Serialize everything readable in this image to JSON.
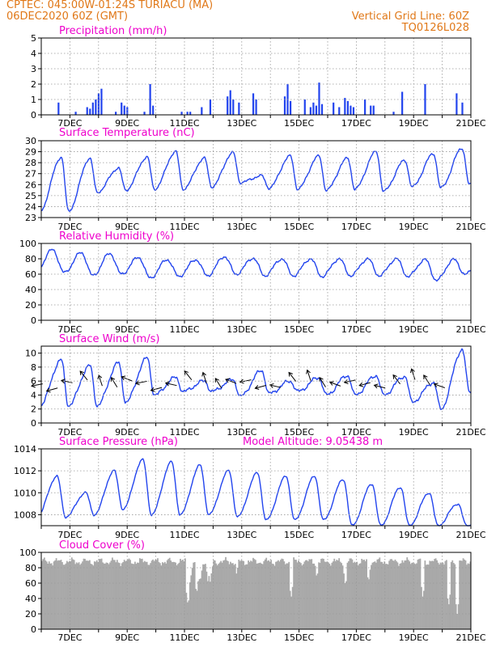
{
  "header": {
    "line1_left": "CPTEC:   045:00W-01:24S   TURIACU (MA)",
    "line2_left": "06DEC2020 60Z (GMT)",
    "line1_right": "Vertical Grid Line: 60Z",
    "line2_right": "TQ0126L028"
  },
  "colors": {
    "header": "#e07818",
    "title": "#ee00cc",
    "series": "#2244ee",
    "cloud": "#a9a9a9"
  },
  "x_axis": {
    "days": [
      "7DEC",
      "9DEC",
      "11DEC",
      "13DEC",
      "15DEC",
      "17DEC",
      "19DEC",
      "21DEC"
    ],
    "start_day": 6,
    "end_day": 21
  },
  "chart_data": [
    {
      "id": "precip",
      "type": "bar",
      "title": "Precipitation (mm/h)",
      "ylim": [
        0,
        5
      ],
      "yticks": [
        0,
        1,
        2,
        3,
        4,
        5
      ],
      "x_start": "06DEC2020",
      "x_end": "21DEC2020",
      "bars": [
        [
          6.6,
          0.8
        ],
        [
          7.2,
          0.2
        ],
        [
          7.6,
          0.5
        ],
        [
          7.7,
          0.4
        ],
        [
          7.8,
          0.8
        ],
        [
          7.9,
          1.0
        ],
        [
          8.0,
          1.4
        ],
        [
          8.1,
          1.7
        ],
        [
          8.6,
          0.2
        ],
        [
          8.8,
          0.8
        ],
        [
          8.9,
          0.6
        ],
        [
          9.0,
          0.5
        ],
        [
          9.6,
          0.2
        ],
        [
          9.8,
          2.0
        ],
        [
          9.9,
          0.6
        ],
        [
          10.9,
          0.2
        ],
        [
          11.1,
          0.2
        ],
        [
          11.2,
          0.2
        ],
        [
          11.6,
          0.5
        ],
        [
          11.9,
          1.0
        ],
        [
          12.5,
          1.2
        ],
        [
          12.6,
          1.6
        ],
        [
          12.7,
          1.0
        ],
        [
          12.9,
          0.8
        ],
        [
          13.4,
          1.4
        ],
        [
          13.5,
          1.0
        ],
        [
          14.5,
          1.2
        ],
        [
          14.6,
          2.0
        ],
        [
          14.7,
          0.9
        ],
        [
          15.2,
          1.0
        ],
        [
          15.4,
          0.5
        ],
        [
          15.5,
          0.8
        ],
        [
          15.6,
          0.6
        ],
        [
          15.7,
          2.1
        ],
        [
          15.8,
          0.7
        ],
        [
          16.2,
          0.8
        ],
        [
          16.4,
          0.5
        ],
        [
          16.6,
          1.1
        ],
        [
          16.7,
          0.9
        ],
        [
          16.8,
          0.6
        ],
        [
          16.9,
          0.5
        ],
        [
          17.3,
          1.0
        ],
        [
          17.5,
          0.6
        ],
        [
          17.6,
          0.6
        ],
        [
          18.3,
          0.2
        ],
        [
          18.6,
          1.5
        ],
        [
          19.4,
          2.0
        ],
        [
          20.5,
          1.4
        ],
        [
          20.7,
          0.8
        ]
      ]
    },
    {
      "id": "temp",
      "type": "line",
      "title": "Surface Temperature (nC)",
      "ylim": [
        23,
        30
      ],
      "yticks": [
        23,
        24,
        25,
        26,
        27,
        28,
        29,
        30
      ],
      "daily_min": [
        23.6,
        25.3,
        25.5,
        25.6,
        25.6,
        25.8,
        26.2,
        25.7,
        25.6,
        25.5,
        25.6,
        25.4,
        25.8,
        25.7,
        26.0
      ],
      "daily_max": [
        28.5,
        28.4,
        27.5,
        28.5,
        29.0,
        28.4,
        28.9,
        26.8,
        28.6,
        28.6,
        28.4,
        29.0,
        28.2,
        28.8,
        29.3,
        28.6
      ]
    },
    {
      "id": "rh",
      "type": "line",
      "title": "Relative Humidity (%)",
      "ylim": [
        0,
        100
      ],
      "yticks": [
        0,
        20,
        40,
        60,
        80,
        100
      ],
      "daily_min": [
        62,
        58,
        60,
        55,
        57,
        58,
        60,
        58,
        58,
        57,
        58,
        58,
        57,
        52,
        60
      ],
      "daily_max": [
        92,
        88,
        87,
        82,
        79,
        79,
        83,
        81,
        80,
        80,
        80,
        80,
        80,
        79,
        79,
        78
      ]
    },
    {
      "id": "wind",
      "type": "line",
      "title": "Surface Wind (m/s)",
      "ylim": [
        0,
        11
      ],
      "yticks": [
        0,
        2,
        4,
        6,
        8,
        10
      ],
      "daily_min": [
        2.5,
        2.5,
        3.0,
        4.0,
        4.5,
        4.5,
        3.8,
        4.2,
        4.5,
        4.0,
        4.0,
        4.0,
        3.0,
        2.0,
        4.5
      ],
      "daily_max": [
        9.0,
        8.2,
        8.6,
        9.3,
        6.5,
        6.0,
        6.2,
        7.5,
        6.0,
        6.5,
        6.8,
        6.8,
        6.7,
        5.8,
        10.5,
        6.0
      ]
    },
    {
      "id": "pres",
      "type": "line",
      "title": "Surface Pressure (hPa)",
      "ylim": [
        1007,
        1014
      ],
      "yticks": [
        1008,
        1010,
        1012,
        1014
      ],
      "annotation": "Model Altitude: 9.05438 m",
      "daily_min": [
        1007.8,
        1008.0,
        1008.5,
        1008.0,
        1008.0,
        1008.0,
        1007.8,
        1007.5,
        1007.5,
        1007.5,
        1007.0,
        1007.0,
        1007.0,
        1007.0,
        1007.0
      ],
      "daily_max": [
        1011.5,
        1010.0,
        1012.0,
        1013.0,
        1012.8,
        1012.5,
        1012.0,
        1011.8,
        1011.5,
        1011.5,
        1011.2,
        1010.8,
        1010.5,
        1010.0,
        1009.0,
        1008.0
      ]
    },
    {
      "id": "cloud",
      "type": "area",
      "title": "Cloud Cover (%)",
      "ylim": [
        0,
        100
      ],
      "yticks": [
        0,
        20,
        40,
        60,
        80,
        100
      ],
      "dips": [
        [
          11.1,
          30
        ],
        [
          11.4,
          45
        ],
        [
          11.8,
          60
        ],
        [
          12.8,
          70
        ],
        [
          14.7,
          40
        ],
        [
          15.6,
          65
        ],
        [
          16.6,
          55
        ],
        [
          17.4,
          60
        ],
        [
          19.3,
          40
        ],
        [
          20.2,
          30
        ],
        [
          20.5,
          20
        ]
      ]
    }
  ]
}
